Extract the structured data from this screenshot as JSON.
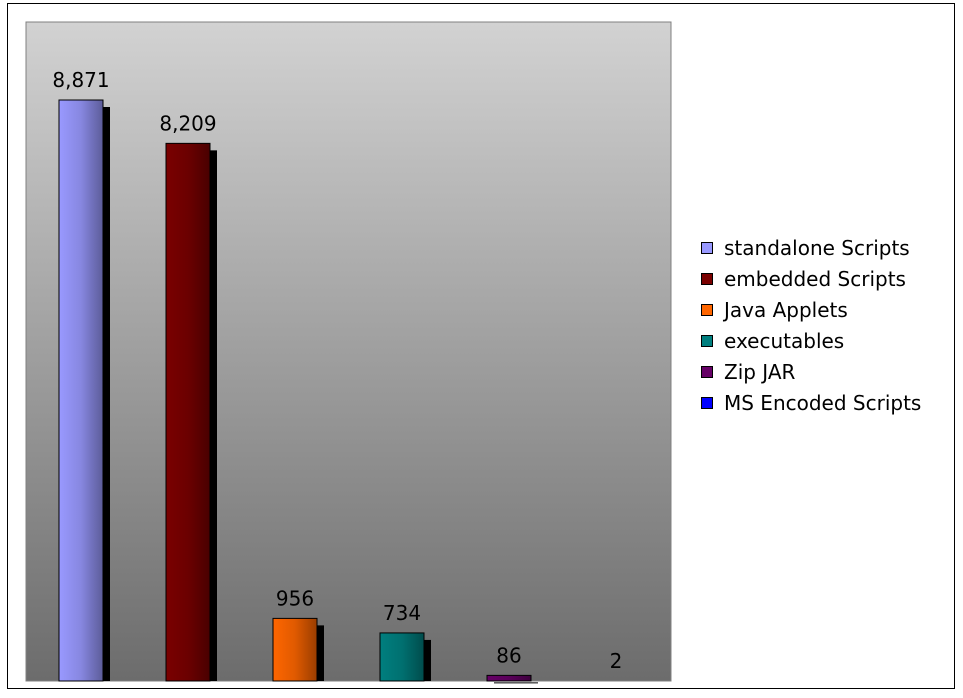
{
  "chart_data": {
    "type": "bar",
    "categories": [
      "standalone Scripts",
      "embedded Scripts",
      "Java Applets",
      "executables",
      "Zip JAR",
      "MS Encoded Scripts"
    ],
    "values": [
      8871,
      8209,
      956,
      734,
      86,
      2
    ],
    "labels": [
      "8,871",
      "8,209",
      "956",
      "734",
      "86",
      "2"
    ],
    "title": "",
    "xlabel": "",
    "ylabel": "",
    "legend_position": "right",
    "grid": false,
    "colors": {
      "standalone Scripts": "#9999ff",
      "embedded Scripts": "#7a0000",
      "Java Applets": "#ff6600",
      "executables": "#007f7f",
      "Zip JAR": "#660066",
      "MS Encoded Scripts": "#0000ff"
    },
    "plot_background": "#a0a0a0"
  }
}
